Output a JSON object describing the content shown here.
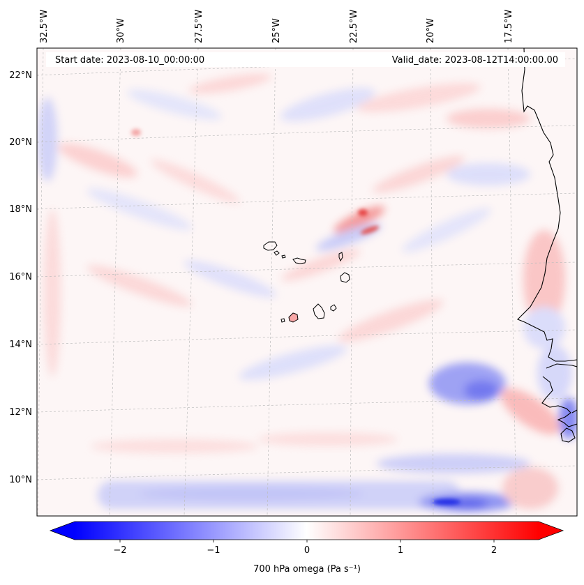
{
  "map": {
    "start_date_text": "Start date: 2023-08-10_00:00:00",
    "valid_date_text": "Valid_date: 2023-08-12T14:00:00.00",
    "lon_labels": [
      "32.5°W",
      "30°W",
      "27.5°W",
      "25°W",
      "22.5°W",
      "20°W",
      "17.5°W"
    ],
    "lat_labels": [
      "22°N",
      "20°N",
      "18°N",
      "16°N",
      "14°N",
      "12°N",
      "10°N"
    ],
    "field": "700 hPa omega",
    "projection_grid": "dashed",
    "colormap": "bwr",
    "features": [
      "Cape Verde islands",
      "West African coastline"
    ]
  },
  "colorbar": {
    "label": "700 hPa omega (Pa s⁻¹)",
    "ticks": [
      "−2",
      "−1",
      "0",
      "1",
      "2"
    ],
    "min": -2.75,
    "max": 2.75,
    "extend": "both",
    "color_negative": "#0000ff",
    "color_zero": "#ffffff",
    "color_positive": "#ff0000"
  }
}
